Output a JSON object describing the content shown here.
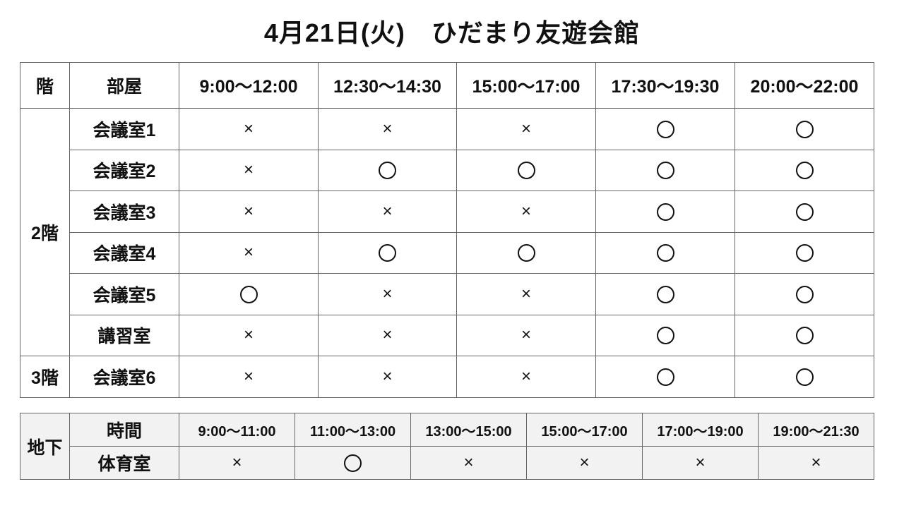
{
  "title": "4月21日(火)　ひだまり友遊会館",
  "main_table": {
    "headers": [
      "階",
      "部屋",
      "9:00～12:00",
      "12:30～14:30",
      "15:00～17:00",
      "17:30～19:30",
      "20:00～22:00"
    ],
    "floor_groups": [
      {
        "floor": "2階",
        "rooms": [
          {
            "room": "会議室1",
            "slots": [
              "×",
              "×",
              "×",
              "○",
              "○"
            ]
          },
          {
            "room": "会議室2",
            "slots": [
              "×",
              "○",
              "○",
              "○",
              "○"
            ]
          },
          {
            "room": "会議室3",
            "slots": [
              "×",
              "×",
              "×",
              "○",
              "○"
            ]
          },
          {
            "room": "会議室4",
            "slots": [
              "×",
              "○",
              "○",
              "○",
              "○"
            ]
          },
          {
            "room": "会議室5",
            "slots": [
              "○",
              "×",
              "×",
              "○",
              "○"
            ]
          },
          {
            "room": "講習室",
            "slots": [
              "×",
              "×",
              "×",
              "○",
              "○"
            ]
          }
        ]
      },
      {
        "floor": "3階",
        "rooms": [
          {
            "room": "会議室6",
            "slots": [
              "×",
              "×",
              "×",
              "○",
              "○"
            ]
          }
        ]
      }
    ]
  },
  "basement_table": {
    "floor": "地下",
    "time_label": "時間",
    "times": [
      "9:00～11:00",
      "11:00～13:00",
      "13:00～15:00",
      "15:00～17:00",
      "17:00～19:00",
      "19:00～21:30"
    ],
    "room": "体育室",
    "slots": [
      "×",
      "○",
      "×",
      "×",
      "×",
      "×"
    ]
  }
}
